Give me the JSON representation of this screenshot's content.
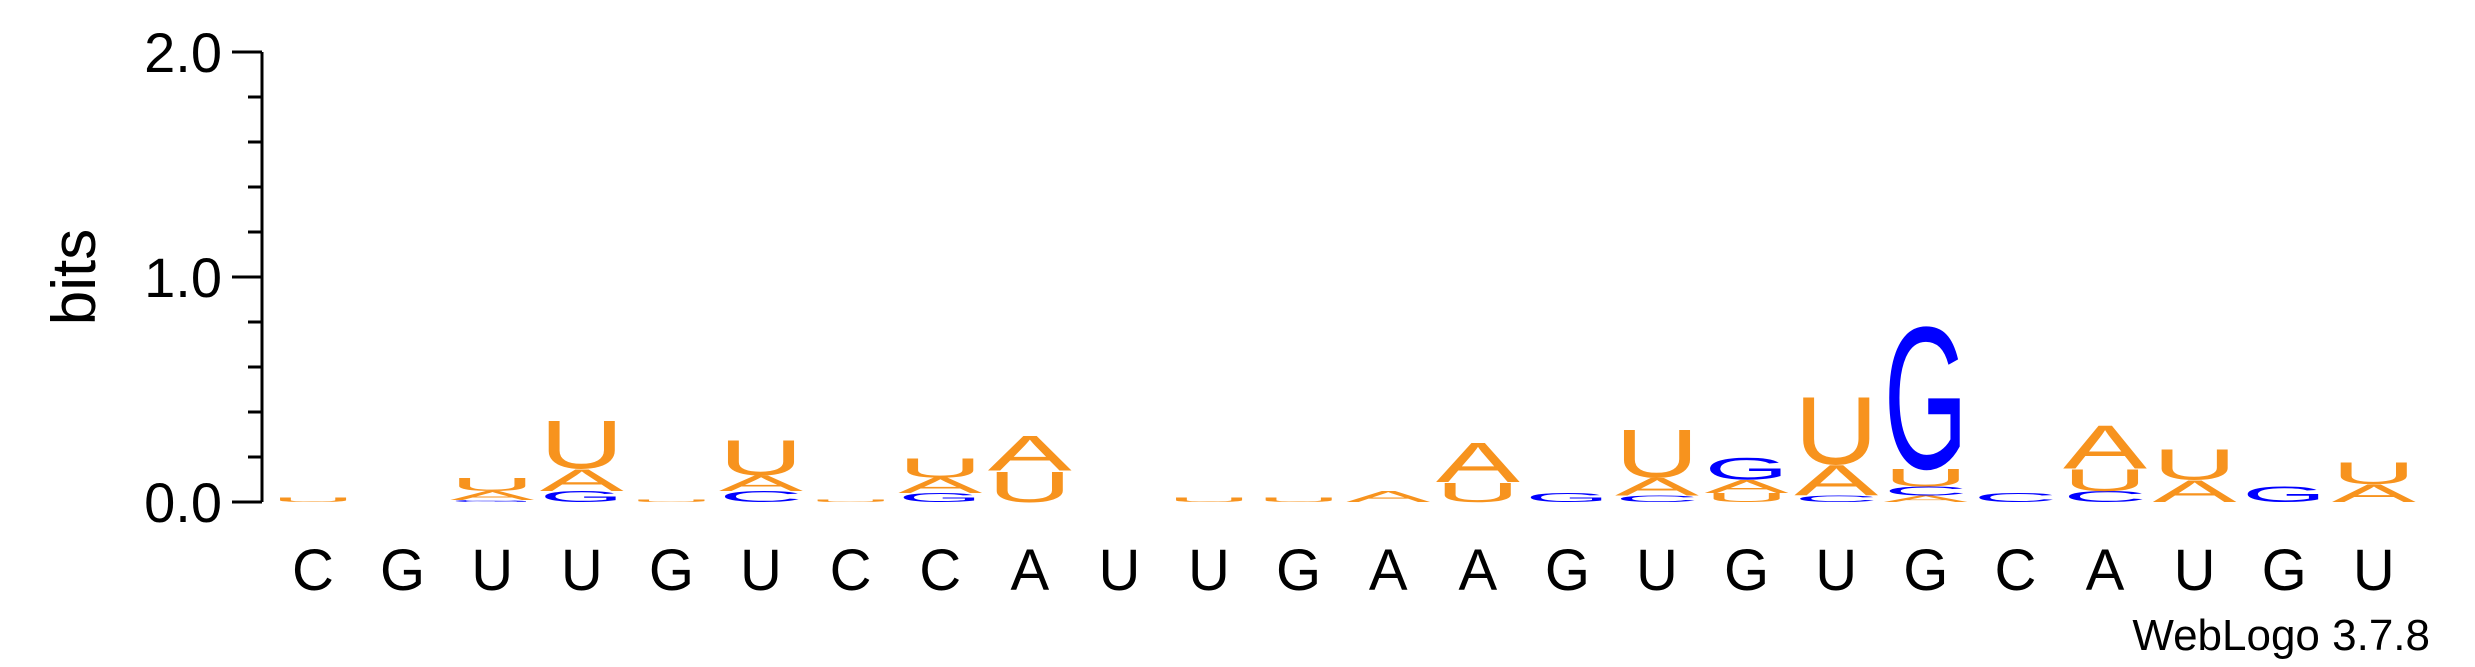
{
  "chart_data": {
    "type": "sequence-logo",
    "ylabel": "bits",
    "ylim": [
      0,
      2.0
    ],
    "yticks": [
      "0.0",
      "1.0",
      "2.0"
    ],
    "credit": "WebLogo 3.7.8",
    "colors": {
      "A": "#f7931e",
      "U": "#f7931e",
      "G": "#0000ff",
      "C": "#0000ff"
    },
    "positions": [
      {
        "label": "C",
        "stack": [
          {
            "letter": "U",
            "bits": 0.02
          }
        ]
      },
      {
        "label": "G",
        "stack": []
      },
      {
        "label": "U",
        "stack": [
          {
            "letter": "G",
            "bits": 0.01
          },
          {
            "letter": "A",
            "bits": 0.04
          },
          {
            "letter": "U",
            "bits": 0.06
          }
        ]
      },
      {
        "label": "U",
        "stack": [
          {
            "letter": "G",
            "bits": 0.05
          },
          {
            "letter": "A",
            "bits": 0.1
          },
          {
            "letter": "U",
            "bits": 0.22
          }
        ]
      },
      {
        "label": "G",
        "stack": [
          {
            "letter": "U",
            "bits": 0.01
          }
        ]
      },
      {
        "label": "U",
        "stack": [
          {
            "letter": "C",
            "bits": 0.05
          },
          {
            "letter": "A",
            "bits": 0.07
          },
          {
            "letter": "U",
            "bits": 0.16
          }
        ]
      },
      {
        "label": "C",
        "stack": [
          {
            "letter": "U",
            "bits": 0.01
          }
        ]
      },
      {
        "label": "C",
        "stack": [
          {
            "letter": "G",
            "bits": 0.04
          },
          {
            "letter": "A",
            "bits": 0.07
          },
          {
            "letter": "U",
            "bits": 0.09
          }
        ]
      },
      {
        "label": "A",
        "stack": [
          {
            "letter": "U",
            "bits": 0.14
          },
          {
            "letter": "A",
            "bits": 0.16
          }
        ]
      },
      {
        "label": "U",
        "stack": []
      },
      {
        "label": "U",
        "stack": [
          {
            "letter": "U",
            "bits": 0.02
          }
        ]
      },
      {
        "label": "G",
        "stack": [
          {
            "letter": "U",
            "bits": 0.02
          }
        ]
      },
      {
        "label": "A",
        "stack": [
          {
            "letter": "A",
            "bits": 0.05
          }
        ]
      },
      {
        "label": "A",
        "stack": [
          {
            "letter": "U",
            "bits": 0.09
          },
          {
            "letter": "A",
            "bits": 0.18
          }
        ]
      },
      {
        "label": "G",
        "stack": [
          {
            "letter": "G",
            "bits": 0.04
          }
        ]
      },
      {
        "label": "U",
        "stack": [
          {
            "letter": "C",
            "bits": 0.03
          },
          {
            "letter": "A",
            "bits": 0.08
          },
          {
            "letter": "U",
            "bits": 0.22
          }
        ]
      },
      {
        "label": "G",
        "stack": [
          {
            "letter": "U",
            "bits": 0.04
          },
          {
            "letter": "A",
            "bits": 0.06
          },
          {
            "letter": "G",
            "bits": 0.1
          }
        ]
      },
      {
        "label": "U",
        "stack": [
          {
            "letter": "C",
            "bits": 0.03
          },
          {
            "letter": "A",
            "bits": 0.14
          },
          {
            "letter": "U",
            "bits": 0.31
          }
        ]
      },
      {
        "label": "G",
        "stack": [
          {
            "letter": "A",
            "bits": 0.03
          },
          {
            "letter": "C",
            "bits": 0.04
          },
          {
            "letter": "U",
            "bits": 0.08
          },
          {
            "letter": "G",
            "bits": 0.65
          }
        ]
      },
      {
        "label": "C",
        "stack": [
          {
            "letter": "C",
            "bits": 0.04
          }
        ]
      },
      {
        "label": "A",
        "stack": [
          {
            "letter": "C",
            "bits": 0.05
          },
          {
            "letter": "U",
            "bits": 0.1
          },
          {
            "letter": "A",
            "bits": 0.2
          }
        ]
      },
      {
        "label": "U",
        "stack": [
          {
            "letter": "A",
            "bits": 0.1
          },
          {
            "letter": "U",
            "bits": 0.14
          }
        ]
      },
      {
        "label": "G",
        "stack": [
          {
            "letter": "G",
            "bits": 0.07
          }
        ]
      },
      {
        "label": "U",
        "stack": [
          {
            "letter": "A",
            "bits": 0.08
          },
          {
            "letter": "U",
            "bits": 0.1
          }
        ]
      }
    ]
  }
}
